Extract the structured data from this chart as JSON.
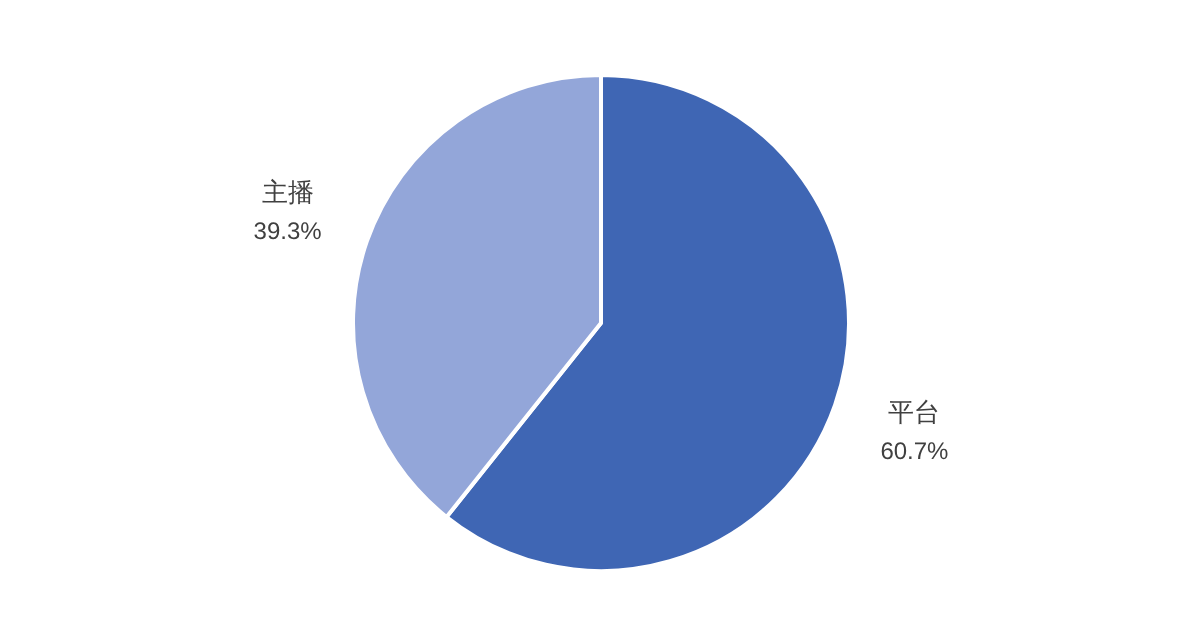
{
  "chart_data": {
    "type": "pie",
    "categories": [
      "平台",
      "主播"
    ],
    "values": [
      60.7,
      39.3
    ],
    "colors": [
      "#3f66b4",
      "#93a6d9"
    ],
    "value_labels": [
      "60.7%",
      "39.3%"
    ]
  }
}
